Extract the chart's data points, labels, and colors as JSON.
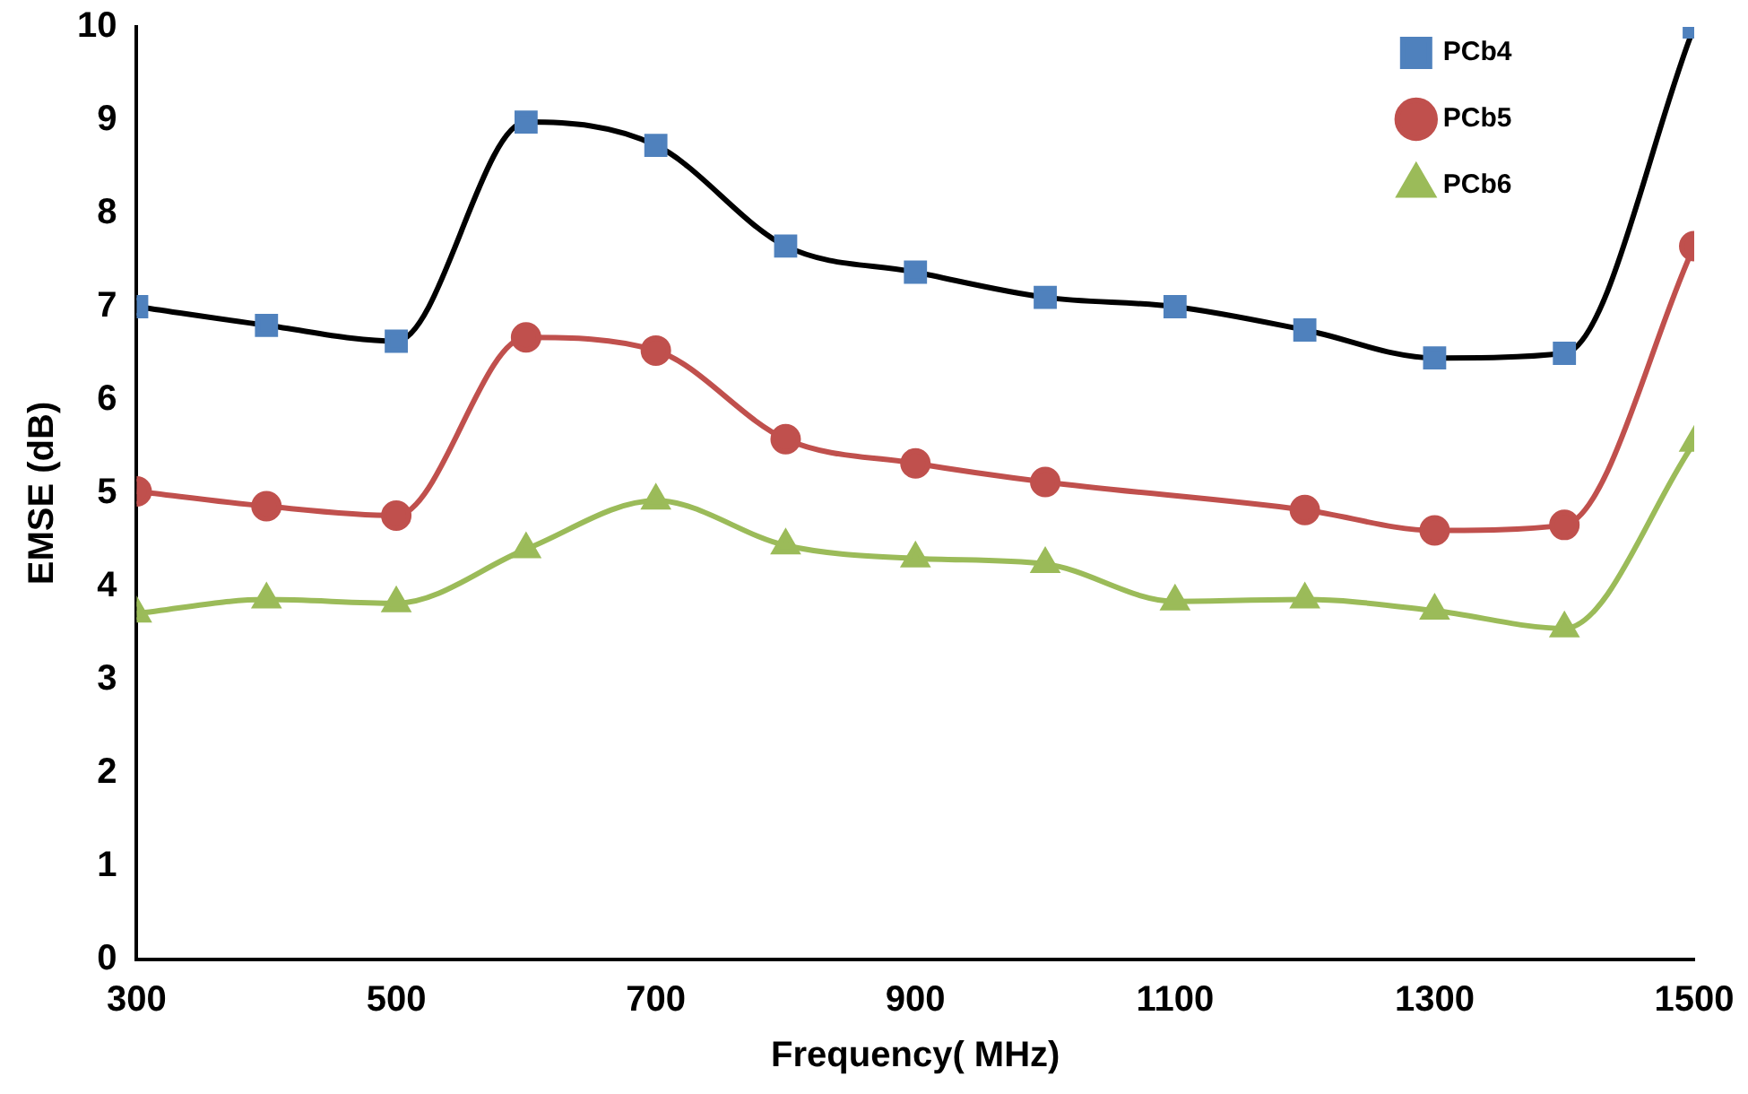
{
  "chart_data": {
    "type": "line",
    "xlabel": "Frequency( MHz)",
    "ylabel": "EMSE (dB)",
    "x": [
      300,
      400,
      500,
      600,
      700,
      800,
      900,
      1000,
      1100,
      1200,
      1300,
      1400,
      1500
    ],
    "series": [
      {
        "name": "PCb4",
        "color": "#4f81bd",
        "marker": "square",
        "values": [
          7.0,
          6.8,
          6.63,
          8.98,
          8.73,
          7.65,
          7.37,
          7.1,
          7.0,
          6.75,
          6.45,
          6.5,
          10.0
        ]
      },
      {
        "name": "PCb5",
        "color": "#c0504d",
        "marker": "circle",
        "x": [
          300,
          400,
          500,
          600,
          700,
          800,
          900,
          1000,
          1200,
          1300,
          1400,
          1500
        ],
        "values": [
          5.02,
          4.86,
          4.76,
          6.67,
          6.53,
          5.58,
          5.32,
          5.12,
          4.82,
          4.6,
          4.66,
          7.65
        ]
      },
      {
        "name": "PCb6",
        "color": "#9bbb59",
        "marker": "triangle",
        "values": [
          3.71,
          3.86,
          3.82,
          4.4,
          4.92,
          4.44,
          4.3,
          4.24,
          3.84,
          3.86,
          3.74,
          3.55,
          5.54
        ]
      }
    ],
    "xlim": [
      300,
      1500
    ],
    "xticks": [
      300,
      500,
      700,
      900,
      1100,
      1300,
      1500
    ],
    "ylim": [
      0,
      10
    ],
    "yticks": [
      0,
      1,
      2,
      3,
      4,
      5,
      6,
      7,
      8,
      9,
      10
    ],
    "grid": false,
    "legend": "top right",
    "line_style": "solid"
  }
}
